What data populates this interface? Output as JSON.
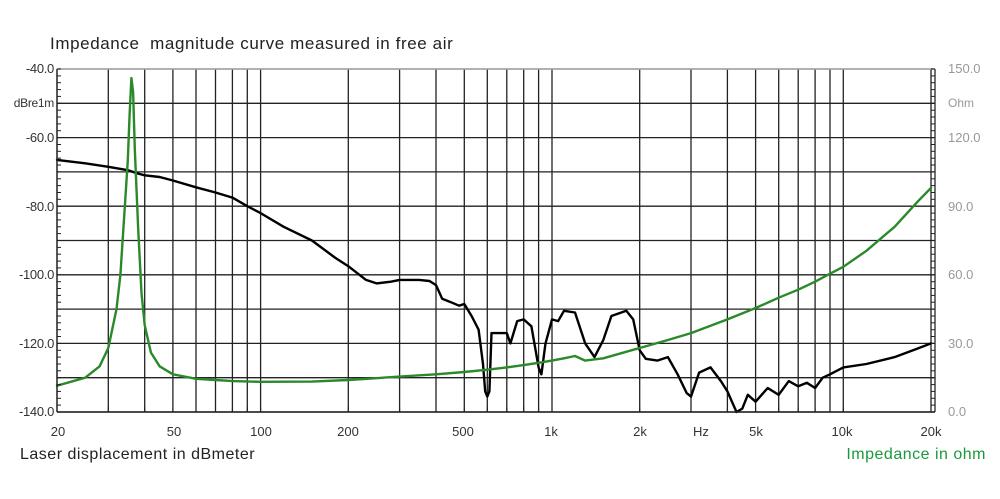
{
  "title": "Impedance  magnitude curve measured in free air",
  "left_axis": {
    "unit_label": "dBre1m",
    "ticks": [
      "-40.0",
      "-60.0",
      "-80.0",
      "-100.0",
      "-120.0",
      "-140.0"
    ]
  },
  "right_axis": {
    "unit_label": "Ohm",
    "ticks": [
      "150.0",
      "120.0",
      "90.0",
      "60.0",
      "30.0",
      "0.0"
    ]
  },
  "x_axis": {
    "ticks": [
      "20",
      "50",
      "100",
      "200",
      "500",
      "1k",
      "2k",
      "Hz",
      "5k",
      "10k",
      "20k"
    ]
  },
  "bottom_left_label": "Laser displacement in dBmeter",
  "bottom_right_label": "Impedance in ohm",
  "colors": {
    "displacement": "#000000",
    "impedance": "#2a8a2a",
    "grid": "#222222",
    "right_label": "#1a9a3c"
  },
  "chart_data": {
    "type": "line",
    "title": "Impedance  magnitude curve measured in free air",
    "xlabel": "Hz",
    "x_scale": "log",
    "xlim": [
      20,
      20000
    ],
    "ylabel_left": "dBre1m",
    "ylim_left": [
      -140,
      -40
    ],
    "ylabel_right": "Ohm",
    "ylim_right": [
      0,
      150
    ],
    "grid": true,
    "series": [
      {
        "name": "Laser displacement in dBmeter",
        "axis": "left",
        "color": "#000000",
        "x": [
          20,
          25,
          30,
          35,
          38,
          40,
          45,
          50,
          60,
          70,
          80,
          90,
          100,
          120,
          150,
          180,
          200,
          230,
          250,
          280,
          300,
          350,
          380,
          400,
          420,
          450,
          480,
          500,
          530,
          560,
          580,
          590,
          600,
          610,
          620,
          650,
          700,
          720,
          760,
          800,
          850,
          900,
          920,
          950,
          1000,
          1050,
          1100,
          1200,
          1300,
          1400,
          1500,
          1600,
          1800,
          1900,
          2000,
          2100,
          2300,
          2500,
          2700,
          2900,
          3000,
          3200,
          3500,
          3800,
          4000,
          4300,
          4500,
          4700,
          5000,
          5500,
          6000,
          6500,
          7000,
          7500,
          8000,
          8500,
          9000,
          10000,
          12000,
          15000,
          18000,
          20000
        ],
        "y": [
          -66.5,
          -67.5,
          -68.5,
          -69.5,
          -70.5,
          -71,
          -71.5,
          -72.5,
          -74.5,
          -76,
          -77.5,
          -80,
          -82,
          -86,
          -90,
          -95,
          -97.5,
          -101.5,
          -102.5,
          -102,
          -101.5,
          -101.5,
          -101.8,
          -103,
          -107,
          -108,
          -109,
          -108.5,
          -112,
          -116,
          -126,
          -134,
          -135.5,
          -134,
          -117,
          -117,
          -117,
          -120,
          -113.5,
          -113,
          -115,
          -127,
          -129,
          -120,
          -113,
          -113.5,
          -110.5,
          -111,
          -120,
          -124,
          -119,
          -112,
          -110.5,
          -113,
          -122,
          -124.5,
          -125,
          -124,
          -129,
          -134.5,
          -135.5,
          -128.5,
          -127,
          -131,
          -134,
          -140,
          -139,
          -135,
          -137,
          -133,
          -135,
          -131,
          -132.5,
          -131.5,
          -133,
          -130,
          -129,
          -127,
          -126,
          -124,
          -121.5,
          -120
        ],
        "values": "see y"
      },
      {
        "name": "Impedance in ohm",
        "axis": "right",
        "color": "#2a8a2a",
        "x": [
          20,
          25,
          28,
          30,
          32,
          33,
          34,
          35,
          35.5,
          36,
          36.5,
          37,
          38,
          39,
          40,
          42,
          45,
          50,
          60,
          70,
          80,
          100,
          150,
          200,
          300,
          400,
          500,
          600,
          700,
          800,
          900,
          1000,
          1100,
          1200,
          1300,
          1500,
          2000,
          2500,
          3000,
          4000,
          5000,
          6000,
          7000,
          8000,
          9000,
          10000,
          12000,
          15000,
          18000,
          20000
        ],
        "y": [
          11.5,
          15,
          20,
          28,
          45,
          60,
          85,
          110,
          130,
          146,
          140,
          115,
          80,
          52,
          38,
          26,
          20,
          16.5,
          14.5,
          14,
          13.5,
          13.2,
          13.3,
          14,
          15.5,
          16.5,
          17.5,
          18.5,
          19.5,
          20.5,
          21.5,
          22.5,
          23.5,
          24.5,
          22.5,
          23.5,
          28,
          31.5,
          34.5,
          40.5,
          45.5,
          50,
          53.5,
          57,
          60.5,
          63.5,
          70.5,
          81,
          92,
          98
        ]
      }
    ]
  }
}
